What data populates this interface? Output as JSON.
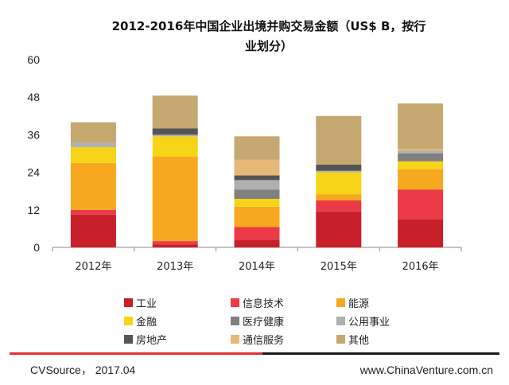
{
  "footer": {
    "source": "CVSource，  2017.04",
    "site": "www.ChinaVenture.com.cn",
    "line_colors": [
      "#e03030",
      "#1a1a1a"
    ]
  },
  "chart_data": {
    "type": "bar",
    "stacked": true,
    "title_lines": [
      "2012-2016年中国企业出境并购交易金额（US$ B，按行",
      "业划分）"
    ],
    "xlabel": "",
    "ylabel": "",
    "ylim": [
      0,
      60
    ],
    "yticks": [
      0,
      12,
      24,
      36,
      48,
      60
    ],
    "grid": false,
    "legend_position": "bottom",
    "categories": [
      "2012年",
      "2013年",
      "2014年",
      "2015年",
      "2016年"
    ],
    "series": [
      {
        "name": "工业",
        "color": "#c8202a",
        "values": [
          10.5,
          1,
          2.5,
          11.5,
          9
        ]
      },
      {
        "name": "信息技术",
        "color": "#ec3a48",
        "values": [
          1.5,
          1,
          4,
          3.5,
          9.5
        ]
      },
      {
        "name": "能源",
        "color": "#f6a81e",
        "values": [
          15,
          27,
          6.5,
          2,
          6.5
        ]
      },
      {
        "name": "金融",
        "color": "#f7d417",
        "values": [
          5,
          6.5,
          2.5,
          7,
          2.5
        ]
      },
      {
        "name": "医疗健康",
        "color": "#808080",
        "values": [
          0,
          0,
          3,
          0,
          2.5
        ]
      },
      {
        "name": "公用事业",
        "color": "#b0b0b0",
        "values": [
          1.5,
          0.5,
          3,
          0.5,
          1
        ]
      },
      {
        "name": "房地产",
        "color": "#555555",
        "values": [
          0,
          2,
          1.5,
          2,
          0
        ]
      },
      {
        "name": "通信服务",
        "color": "#e8b878",
        "values": [
          0,
          0,
          5,
          0,
          0.5
        ]
      },
      {
        "name": "其他",
        "color": "#c4a870",
        "values": [
          6.5,
          10.5,
          7.5,
          15.5,
          14.5
        ]
      }
    ]
  }
}
